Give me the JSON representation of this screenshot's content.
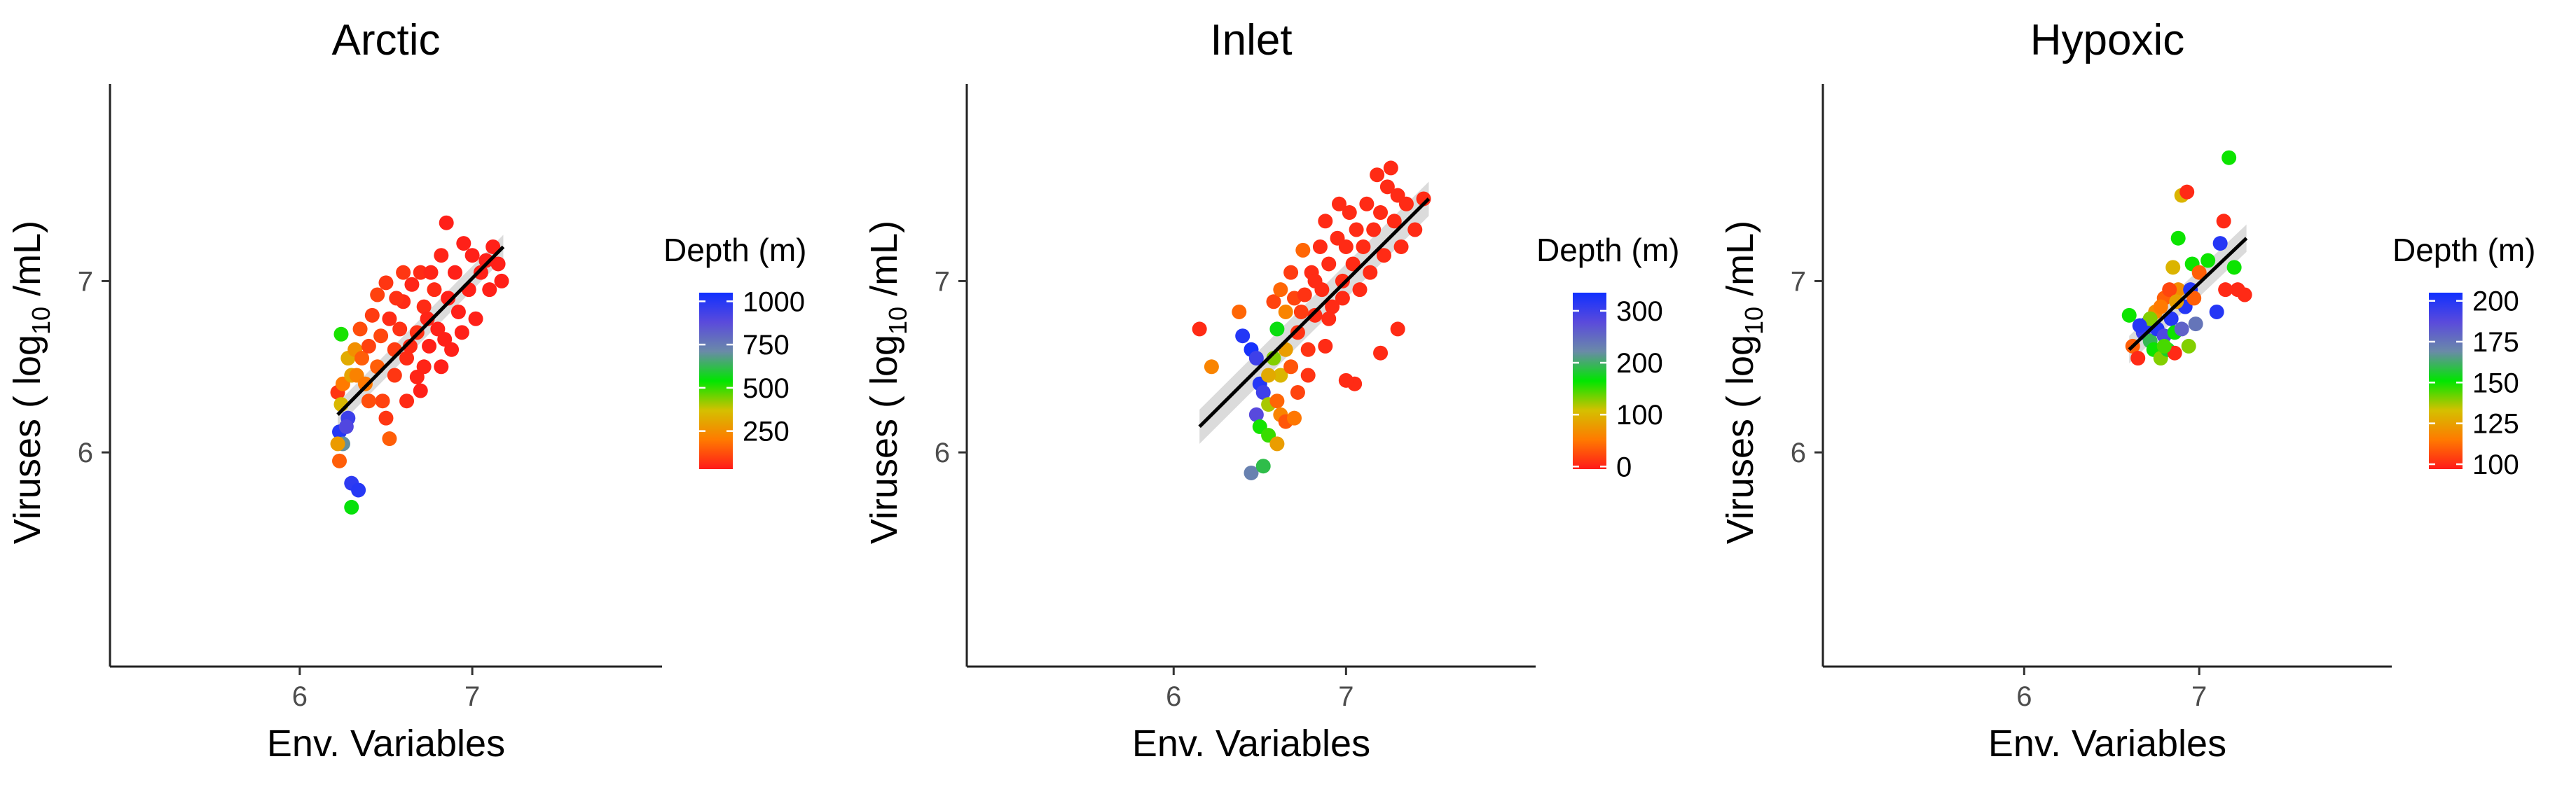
{
  "chart_data": [
    {
      "type": "scatter",
      "title": "Arctic",
      "xlabel": "Env. Variables",
      "ylabel": {
        "pre": "Viruses ( log",
        "sub": "10",
        "post": " /mL)"
      },
      "xticks": [
        6,
        7
      ],
      "yticks": [
        6,
        7
      ],
      "xlim": [
        4.9,
        8.1
      ],
      "ylim": [
        4.75,
        8.15
      ],
      "grid": false,
      "color_scale": {
        "title": "Depth (m)",
        "range": [
          30,
          1050
        ],
        "ticks": [
          250,
          500,
          750,
          1000
        ],
        "colors": [
          "#ff1a1a",
          "#ff7a00",
          "#d4c000",
          "#00e600",
          "#6a8aa8",
          "#5a4adc",
          "#1030ff"
        ]
      },
      "fit_line": {
        "x": [
          6.22,
          7.18
        ],
        "y": [
          6.22,
          7.2
        ],
        "ci": 0.07
      },
      "points": [
        {
          "x": 6.22,
          "y": 6.35,
          "d": 80
        },
        {
          "x": 6.25,
          "y": 6.4,
          "d": 200
        },
        {
          "x": 6.3,
          "y": 6.45,
          "d": 300
        },
        {
          "x": 6.24,
          "y": 6.28,
          "d": 350
        },
        {
          "x": 6.28,
          "y": 6.2,
          "d": 950
        },
        {
          "x": 6.23,
          "y": 6.12,
          "d": 1000
        },
        {
          "x": 6.27,
          "y": 6.15,
          "d": 900
        },
        {
          "x": 6.25,
          "y": 6.05,
          "d": 700
        },
        {
          "x": 6.22,
          "y": 6.05,
          "d": 280
        },
        {
          "x": 6.23,
          "y": 5.95,
          "d": 150
        },
        {
          "x": 6.3,
          "y": 5.82,
          "d": 980
        },
        {
          "x": 6.34,
          "y": 5.78,
          "d": 1000
        },
        {
          "x": 6.3,
          "y": 5.68,
          "d": 550
        },
        {
          "x": 6.24,
          "y": 6.69,
          "d": 520
        },
        {
          "x": 6.28,
          "y": 6.55,
          "d": 320
        },
        {
          "x": 6.32,
          "y": 6.6,
          "d": 250
        },
        {
          "x": 6.33,
          "y": 6.45,
          "d": 220
        },
        {
          "x": 6.36,
          "y": 6.55,
          "d": 150
        },
        {
          "x": 6.38,
          "y": 6.4,
          "d": 200
        },
        {
          "x": 6.35,
          "y": 6.72,
          "d": 120
        },
        {
          "x": 6.4,
          "y": 6.62,
          "d": 100
        },
        {
          "x": 6.45,
          "y": 6.5,
          "d": 150
        },
        {
          "x": 6.48,
          "y": 6.3,
          "d": 100
        },
        {
          "x": 6.5,
          "y": 6.2,
          "d": 80
        },
        {
          "x": 6.52,
          "y": 6.08,
          "d": 150
        },
        {
          "x": 6.45,
          "y": 6.92,
          "d": 100
        },
        {
          "x": 6.5,
          "y": 6.99,
          "d": 80
        },
        {
          "x": 6.52,
          "y": 6.78,
          "d": 60
        },
        {
          "x": 6.55,
          "y": 6.6,
          "d": 90
        },
        {
          "x": 6.58,
          "y": 6.72,
          "d": 70
        },
        {
          "x": 6.6,
          "y": 6.88,
          "d": 60
        },
        {
          "x": 6.6,
          "y": 7.05,
          "d": 80
        },
        {
          "x": 6.62,
          "y": 6.55,
          "d": 60
        },
        {
          "x": 6.65,
          "y": 6.98,
          "d": 50
        },
        {
          "x": 6.68,
          "y": 6.7,
          "d": 70
        },
        {
          "x": 6.68,
          "y": 6.44,
          "d": 50
        },
        {
          "x": 6.7,
          "y": 6.36,
          "d": 40
        },
        {
          "x": 6.7,
          "y": 7.05,
          "d": 60
        },
        {
          "x": 6.72,
          "y": 6.85,
          "d": 60
        },
        {
          "x": 6.75,
          "y": 6.62,
          "d": 40
        },
        {
          "x": 6.76,
          "y": 7.05,
          "d": 50
        },
        {
          "x": 6.78,
          "y": 6.95,
          "d": 60
        },
        {
          "x": 6.8,
          "y": 6.72,
          "d": 40
        },
        {
          "x": 6.82,
          "y": 6.5,
          "d": 40
        },
        {
          "x": 6.82,
          "y": 7.15,
          "d": 50
        },
        {
          "x": 6.85,
          "y": 7.34,
          "d": 40
        },
        {
          "x": 6.86,
          "y": 6.9,
          "d": 40
        },
        {
          "x": 6.88,
          "y": 6.6,
          "d": 40
        },
        {
          "x": 6.9,
          "y": 7.05,
          "d": 40
        },
        {
          "x": 6.92,
          "y": 6.82,
          "d": 40
        },
        {
          "x": 6.95,
          "y": 7.22,
          "d": 40
        },
        {
          "x": 6.98,
          "y": 6.95,
          "d": 40
        },
        {
          "x": 7.0,
          "y": 7.15,
          "d": 40
        },
        {
          "x": 7.02,
          "y": 6.78,
          "d": 40
        },
        {
          "x": 7.05,
          "y": 7.05,
          "d": 40
        },
        {
          "x": 7.08,
          "y": 7.12,
          "d": 40
        },
        {
          "x": 7.1,
          "y": 6.95,
          "d": 40
        },
        {
          "x": 7.12,
          "y": 7.2,
          "d": 40
        },
        {
          "x": 7.15,
          "y": 7.1,
          "d": 40
        },
        {
          "x": 7.17,
          "y": 7.0,
          "d": 40
        },
        {
          "x": 6.4,
          "y": 6.3,
          "d": 120
        },
        {
          "x": 6.55,
          "y": 6.45,
          "d": 80
        },
        {
          "x": 6.62,
          "y": 6.3,
          "d": 60
        },
        {
          "x": 6.72,
          "y": 6.5,
          "d": 50
        },
        {
          "x": 6.42,
          "y": 6.8,
          "d": 90
        },
        {
          "x": 6.47,
          "y": 6.68,
          "d": 110
        },
        {
          "x": 6.56,
          "y": 6.9,
          "d": 70
        },
        {
          "x": 6.64,
          "y": 6.62,
          "d": 60
        },
        {
          "x": 6.74,
          "y": 6.78,
          "d": 50
        },
        {
          "x": 6.84,
          "y": 6.66,
          "d": 40
        },
        {
          "x": 6.94,
          "y": 6.7,
          "d": 40
        }
      ]
    },
    {
      "type": "scatter",
      "title": "Inlet",
      "xlabel": "Env. Variables",
      "ylabel": {
        "pre": "Viruses ( log",
        "sub": "10",
        "post": " /mL)"
      },
      "xticks": [
        6,
        7
      ],
      "yticks": [
        6,
        7
      ],
      "xlim": [
        4.8,
        8.1
      ],
      "ylim": [
        4.75,
        8.15
      ],
      "grid": false,
      "color_scale": {
        "title": "Depth (m)",
        "range": [
          -5,
          335
        ],
        "ticks": [
          0,
          100,
          200,
          300
        ],
        "colors": [
          "#ff1a1a",
          "#ff7a00",
          "#d4c000",
          "#00e600",
          "#6a8aa8",
          "#5a4adc",
          "#1030ff"
        ]
      },
      "fit_line": {
        "x": [
          6.15,
          7.48
        ],
        "y": [
          6.15,
          7.48
        ],
        "ci": 0.1
      },
      "points": [
        {
          "x": 6.15,
          "y": 6.72,
          "d": 5
        },
        {
          "x": 6.22,
          "y": 6.5,
          "d": 60
        },
        {
          "x": 6.38,
          "y": 6.82,
          "d": 40
        },
        {
          "x": 6.4,
          "y": 6.68,
          "d": 320
        },
        {
          "x": 6.45,
          "y": 6.6,
          "d": 330
        },
        {
          "x": 6.48,
          "y": 6.55,
          "d": 300
        },
        {
          "x": 6.5,
          "y": 6.4,
          "d": 320
        },
        {
          "x": 6.52,
          "y": 6.35,
          "d": 300
        },
        {
          "x": 6.48,
          "y": 6.22,
          "d": 280
        },
        {
          "x": 6.5,
          "y": 6.15,
          "d": 160
        },
        {
          "x": 6.55,
          "y": 6.1,
          "d": 150
        },
        {
          "x": 6.6,
          "y": 6.05,
          "d": 80
        },
        {
          "x": 6.45,
          "y": 5.88,
          "d": 230
        },
        {
          "x": 6.52,
          "y": 5.92,
          "d": 190
        },
        {
          "x": 6.55,
          "y": 6.28,
          "d": 120
        },
        {
          "x": 6.6,
          "y": 6.3,
          "d": 40
        },
        {
          "x": 6.62,
          "y": 6.22,
          "d": 60
        },
        {
          "x": 6.65,
          "y": 6.18,
          "d": 30
        },
        {
          "x": 6.7,
          "y": 6.2,
          "d": 50
        },
        {
          "x": 6.58,
          "y": 6.55,
          "d": 130
        },
        {
          "x": 6.6,
          "y": 6.72,
          "d": 170
        },
        {
          "x": 6.62,
          "y": 6.45,
          "d": 100
        },
        {
          "x": 6.65,
          "y": 6.6,
          "d": 80
        },
        {
          "x": 6.55,
          "y": 6.45,
          "d": 90
        },
        {
          "x": 6.58,
          "y": 6.88,
          "d": 20
        },
        {
          "x": 6.62,
          "y": 6.95,
          "d": 40
        },
        {
          "x": 6.65,
          "y": 6.82,
          "d": 60
        },
        {
          "x": 6.68,
          "y": 7.05,
          "d": 15
        },
        {
          "x": 6.7,
          "y": 6.9,
          "d": 20
        },
        {
          "x": 6.72,
          "y": 6.7,
          "d": 10
        },
        {
          "x": 6.75,
          "y": 7.18,
          "d": 40
        },
        {
          "x": 6.76,
          "y": 6.92,
          "d": 10
        },
        {
          "x": 6.78,
          "y": 6.6,
          "d": 10
        },
        {
          "x": 6.8,
          "y": 7.05,
          "d": 5
        },
        {
          "x": 6.82,
          "y": 6.8,
          "d": 5
        },
        {
          "x": 6.85,
          "y": 7.2,
          "d": 5
        },
        {
          "x": 6.86,
          "y": 6.95,
          "d": 5
        },
        {
          "x": 6.88,
          "y": 7.35,
          "d": 5
        },
        {
          "x": 6.9,
          "y": 7.1,
          "d": 5
        },
        {
          "x": 6.92,
          "y": 6.85,
          "d": 5
        },
        {
          "x": 6.95,
          "y": 7.25,
          "d": 5
        },
        {
          "x": 6.96,
          "y": 7.45,
          "d": 5
        },
        {
          "x": 6.98,
          "y": 7.0,
          "d": 5
        },
        {
          "x": 7.0,
          "y": 7.2,
          "d": 5
        },
        {
          "x": 7.02,
          "y": 7.4,
          "d": 5
        },
        {
          "x": 7.04,
          "y": 7.1,
          "d": 5
        },
        {
          "x": 7.06,
          "y": 7.3,
          "d": 5
        },
        {
          "x": 7.08,
          "y": 6.95,
          "d": 5
        },
        {
          "x": 7.1,
          "y": 7.2,
          "d": 5
        },
        {
          "x": 7.12,
          "y": 7.45,
          "d": 5
        },
        {
          "x": 7.14,
          "y": 7.05,
          "d": 5
        },
        {
          "x": 7.16,
          "y": 7.3,
          "d": 5
        },
        {
          "x": 7.18,
          "y": 7.62,
          "d": 5
        },
        {
          "x": 7.2,
          "y": 7.4,
          "d": 5
        },
        {
          "x": 7.22,
          "y": 7.15,
          "d": 5
        },
        {
          "x": 7.24,
          "y": 7.55,
          "d": 5
        },
        {
          "x": 7.26,
          "y": 7.66,
          "d": 5
        },
        {
          "x": 7.28,
          "y": 7.35,
          "d": 5
        },
        {
          "x": 7.3,
          "y": 7.5,
          "d": 5
        },
        {
          "x": 7.32,
          "y": 7.2,
          "d": 5
        },
        {
          "x": 7.35,
          "y": 7.45,
          "d": 5
        },
        {
          "x": 7.4,
          "y": 7.3,
          "d": 5
        },
        {
          "x": 7.45,
          "y": 7.48,
          "d": 5
        },
        {
          "x": 7.2,
          "y": 6.58,
          "d": 5
        },
        {
          "x": 7.3,
          "y": 6.72,
          "d": 5
        },
        {
          "x": 7.05,
          "y": 6.4,
          "d": 5
        },
        {
          "x": 7.0,
          "y": 6.42,
          "d": 5
        },
        {
          "x": 6.72,
          "y": 6.35,
          "d": 20
        },
        {
          "x": 6.78,
          "y": 6.45,
          "d": 10
        },
        {
          "x": 6.88,
          "y": 6.62,
          "d": 5
        },
        {
          "x": 6.68,
          "y": 6.5,
          "d": 30
        },
        {
          "x": 6.74,
          "y": 6.82,
          "d": 15
        },
        {
          "x": 6.82,
          "y": 7.0,
          "d": 5
        },
        {
          "x": 6.9,
          "y": 6.78,
          "d": 5
        },
        {
          "x": 6.98,
          "y": 6.9,
          "d": 5
        }
      ]
    },
    {
      "type": "scatter",
      "title": "Hypoxic",
      "xlabel": "Env. Variables",
      "ylabel": {
        "pre": "Viruses ( log",
        "sub": "10",
        "post": " /mL)"
      },
      "xticks": [
        6,
        7
      ],
      "yticks": [
        6,
        7
      ],
      "xlim": [
        4.85,
        8.1
      ],
      "ylim": [
        4.75,
        8.15
      ],
      "grid": false,
      "color_scale": {
        "title": "Depth (m)",
        "range": [
          97,
          205
        ],
        "ticks": [
          100,
          125,
          150,
          175,
          200
        ],
        "colors": [
          "#ff1a1a",
          "#ff7a00",
          "#d4c000",
          "#00e600",
          "#6a8aa8",
          "#5a4adc",
          "#1030ff"
        ]
      },
      "fit_line": {
        "x": [
          6.6,
          7.27
        ],
        "y": [
          6.6,
          7.25
        ],
        "ci": 0.08
      },
      "points": [
        {
          "x": 6.6,
          "y": 6.8,
          "d": 150
        },
        {
          "x": 6.62,
          "y": 6.62,
          "d": 110
        },
        {
          "x": 6.65,
          "y": 6.55,
          "d": 100
        },
        {
          "x": 6.68,
          "y": 6.7,
          "d": 195
        },
        {
          "x": 6.7,
          "y": 6.75,
          "d": 200
        },
        {
          "x": 6.72,
          "y": 6.65,
          "d": 160
        },
        {
          "x": 6.74,
          "y": 6.6,
          "d": 150
        },
        {
          "x": 6.75,
          "y": 6.82,
          "d": 120
        },
        {
          "x": 6.76,
          "y": 6.72,
          "d": 200
        },
        {
          "x": 6.78,
          "y": 6.55,
          "d": 140
        },
        {
          "x": 6.8,
          "y": 6.68,
          "d": 190
        },
        {
          "x": 6.8,
          "y": 6.9,
          "d": 110
        },
        {
          "x": 6.82,
          "y": 6.6,
          "d": 155
        },
        {
          "x": 6.84,
          "y": 6.78,
          "d": 200
        },
        {
          "x": 6.85,
          "y": 7.08,
          "d": 130
        },
        {
          "x": 6.86,
          "y": 6.7,
          "d": 150
        },
        {
          "x": 6.88,
          "y": 7.25,
          "d": 150
        },
        {
          "x": 6.88,
          "y": 6.95,
          "d": 120
        },
        {
          "x": 6.9,
          "y": 7.5,
          "d": 130
        },
        {
          "x": 6.92,
          "y": 6.85,
          "d": 200
        },
        {
          "x": 6.93,
          "y": 7.52,
          "d": 100
        },
        {
          "x": 6.95,
          "y": 6.95,
          "d": 200
        },
        {
          "x": 6.96,
          "y": 7.1,
          "d": 150
        },
        {
          "x": 6.98,
          "y": 6.75,
          "d": 175
        },
        {
          "x": 7.0,
          "y": 7.05,
          "d": 110
        },
        {
          "x": 7.05,
          "y": 7.12,
          "d": 150
        },
        {
          "x": 7.1,
          "y": 6.82,
          "d": 200
        },
        {
          "x": 7.12,
          "y": 7.22,
          "d": 200
        },
        {
          "x": 7.14,
          "y": 7.35,
          "d": 100
        },
        {
          "x": 7.15,
          "y": 6.95,
          "d": 100
        },
        {
          "x": 7.17,
          "y": 7.72,
          "d": 150
        },
        {
          "x": 7.2,
          "y": 7.08,
          "d": 150
        },
        {
          "x": 7.22,
          "y": 6.95,
          "d": 100
        },
        {
          "x": 7.26,
          "y": 6.92,
          "d": 100
        },
        {
          "x": 6.78,
          "y": 6.85,
          "d": 115
        },
        {
          "x": 6.83,
          "y": 6.95,
          "d": 105
        },
        {
          "x": 6.87,
          "y": 6.88,
          "d": 125
        },
        {
          "x": 6.9,
          "y": 6.72,
          "d": 180
        },
        {
          "x": 6.72,
          "y": 6.78,
          "d": 140
        },
        {
          "x": 6.66,
          "y": 6.74,
          "d": 200
        },
        {
          "x": 6.94,
          "y": 6.62,
          "d": 140
        },
        {
          "x": 6.86,
          "y": 6.58,
          "d": 100
        },
        {
          "x": 6.8,
          "y": 6.62,
          "d": 145
        },
        {
          "x": 6.97,
          "y": 6.9,
          "d": 110
        }
      ]
    }
  ]
}
